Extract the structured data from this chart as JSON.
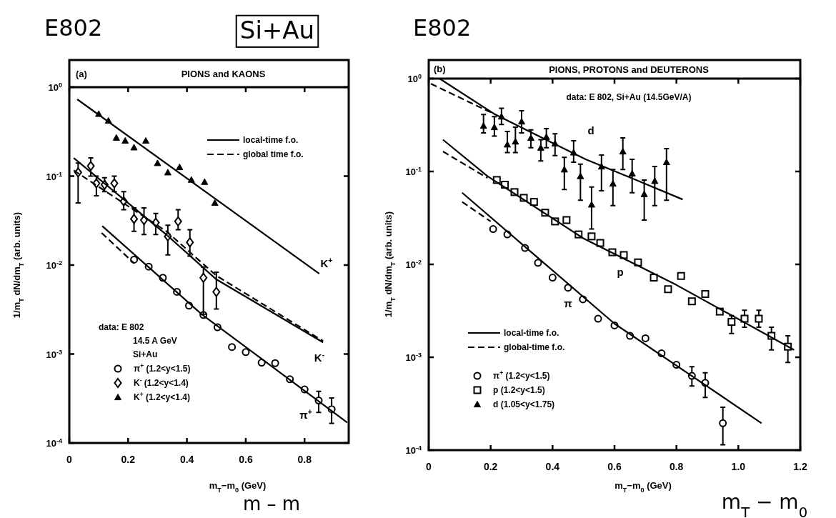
{
  "chart_data": [
    {
      "type": "scatter",
      "title": "E802",
      "subtitle": "PIONS and KAONS",
      "xlabel": "m$_{T}$−m$_{0}$ (GeV)",
      "ylabel": "1/m$_{T}$ dN/dm$_{T}$ (arb. units)",
      "log": "y",
      "legend": "bottom left",
      "xlim": [
        0,
        0.95
      ],
      "xticks": [
        0,
        {
          "value": 0.2,
          "label": "0.2"
        },
        {
          "value": 0.4,
          "label": "0.4"
        },
        {
          "value": 0.6,
          "label": "0.6"
        },
        {
          "value": 0.8,
          "label": "0.8"
        }
      ],
      "ylim": [
        0.0001,
        1
      ],
      "yticks": [
        {
          "value": 1,
          "label": "10$^{0}$"
        },
        {
          "value": 0.1,
          "label": "10$^{-1}$"
        },
        {
          "value": 0.01,
          "label": "10$^{-2}$"
        },
        {
          "value": 0.001,
          "label": "10$^{-3}$"
        },
        {
          "value": 0.0001,
          "label": "10$^{-4}$"
        }
      ],
      "annotations": [
        "(a)",
        "data: E 802",
        "14.5 A GeV",
        "Si+Au",
        "Si+Au",
        "m – m",
        "K$^{+}$",
        "K$^{-}$",
        "π$^{+}$"
      ],
      "series": [
        {
          "name": "π$^{+}$ (1.2<y<1.5)",
          "marker": "circle",
          "color": "#000000",
          "x": [
            0.22,
            0.27,
            0.318,
            0.366,
            0.407,
            0.456,
            0.504,
            0.553,
            0.6,
            0.654,
            0.7,
            0.75,
            0.8,
            0.848,
            0.892
          ],
          "values": [
            0.0115,
            0.0096,
            0.0072,
            0.005,
            0.0035,
            0.00275,
            0.002,
            0.0012,
            0.00105,
            0.0008,
            0.00079,
            0.00052,
            0.0004,
            0.0003,
            0.00024
          ],
          "errors": [
            null,
            null,
            null,
            null,
            null,
            null,
            null,
            null,
            null,
            null,
            null,
            null,
            null,
            [
              0.00022,
              0.00038
            ],
            [
              0.000166,
              0.00032
            ]
          ]
        },
        {
          "name": "K$^{-}$ (1.2<y<1.4)",
          "marker": "diamond",
          "color": "#000000",
          "x": [
            0.03,
            0.073,
            0.092,
            0.12,
            0.153,
            0.185,
            0.22,
            0.254,
            0.294,
            0.335,
            0.37,
            0.41,
            0.456,
            0.5
          ],
          "values": [
            0.11,
            0.13,
            0.083,
            0.08,
            0.083,
            0.052,
            0.033,
            0.032,
            0.03,
            0.021,
            0.031,
            0.018,
            0.0072,
            0.005
          ],
          "errors": [
            [
              0.05,
              0.14
            ],
            [
              0.1,
              0.16
            ],
            [
              0.06,
              0.1
            ],
            [
              0.067,
              0.096
            ],
            [
              0.067,
              0.1
            ],
            [
              0.042,
              0.067
            ],
            [
              0.024,
              0.044
            ],
            [
              0.022,
              0.044
            ],
            [
              0.022,
              0.038
            ],
            [
              0.013,
              0.028
            ],
            [
              0.025,
              0.042
            ],
            [
              0.0126,
              0.025
            ],
            [
              0.0028,
              0.0095
            ],
            [
              0.0032,
              0.0083
            ]
          ]
        },
        {
          "name": "K$^{+}$ (1.2<y<1.4)",
          "marker": "triangle",
          "color": "#000000",
          "x": [
            0.1,
            0.133,
            0.16,
            0.19,
            0.22,
            0.26,
            0.3,
            0.335,
            0.375,
            0.415,
            0.46,
            0.495
          ],
          "values": [
            0.5,
            0.42,
            0.27,
            0.25,
            0.21,
            0.25,
            0.14,
            0.11,
            0.126,
            0.091,
            0.086,
            0.05
          ]
        },
        {
          "name": "local-time f.o.",
          "type": "line",
          "line_style": "solid",
          "color": "#000000",
          "x": [
            0.027,
            0.85
          ],
          "values": [
            0.73,
            0.008
          ]
        },
        {
          "type": "line",
          "line_style": "solid",
          "color": "#000000",
          "x": [
            0.015,
            0.33,
            0.5,
            0.863
          ],
          "values": [
            0.16,
            0.022,
            0.0069,
            0.00135
          ]
        },
        {
          "name": "global time f.o.",
          "type": "line",
          "line_style": "dashed",
          "color": "#000000",
          "x": [
            0.015,
            0.33,
            0.5,
            0.863
          ],
          "values": [
            0.116,
            0.024,
            0.0076,
            0.0014
          ]
        },
        {
          "type": "line",
          "line_style": "solid",
          "color": "#000000",
          "x": [
            0.112,
            0.45,
            0.945
          ],
          "values": [
            0.0275,
            0.0028,
            0.00017
          ]
        },
        {
          "type": "line",
          "line_style": "dashed",
          "color": "#000000",
          "x": [
            0.11,
            0.22
          ],
          "values": [
            0.023,
            0.0105
          ]
        }
      ]
    },
    {
      "type": "scatter",
      "title": "E802",
      "subtitle": "PIONS, PROTONS and DEUTERONS",
      "xlabel": "m$_{T}$−m$_{0}$ (GeV)",
      "ylabel": "1/m$_{T}$ dN/dm$_{T}$ (arb. units)",
      "log": "y",
      "legend": "bottom left",
      "xlim": [
        0,
        1.2
      ],
      "xticks": [
        0,
        {
          "value": 0.2,
          "label": "0.2"
        },
        {
          "value": 0.4,
          "label": "0.4"
        },
        {
          "value": 0.6,
          "label": "0.6"
        },
        {
          "value": 0.8,
          "label": "0.8"
        },
        {
          "value": 1,
          "label": "1.0"
        },
        {
          "value": 1.2,
          "label": "1.2"
        }
      ],
      "ylim": [
        0.0001,
        1
      ],
      "yticks": [
        {
          "value": 1,
          "label": "10$^{0}$"
        },
        {
          "value": 0.1,
          "label": "10$^{-1}$"
        },
        {
          "value": 0.01,
          "label": "10$^{-2}$"
        },
        {
          "value": 0.001,
          "label": "10$^{-3}$"
        },
        {
          "value": 0.0001,
          "label": "10$^{-4}$"
        }
      ],
      "annotations": [
        "(b)",
        "data: E 802, Si+Au (14.5GeV/A)",
        "m$_{T}$ − m$_{0}$",
        "d",
        "p",
        "π"
      ],
      "series": [
        {
          "name": "π$^{+}$ (1.2<y<1.5)",
          "marker": "circle",
          "color": "#000000",
          "x": [
            0.208,
            0.254,
            0.311,
            0.353,
            0.4,
            0.45,
            0.498,
            0.547,
            0.6,
            0.65,
            0.7,
            0.752,
            0.8,
            0.85,
            0.893,
            0.95
          ],
          "values": [
            0.024,
            0.021,
            0.015,
            0.0104,
            0.0072,
            0.0056,
            0.0042,
            0.0026,
            0.0022,
            0.0017,
            0.0016,
            0.0011,
            0.00083,
            0.00063,
            0.00053,
            0.000195
          ],
          "errors": [
            null,
            null,
            null,
            null,
            null,
            null,
            null,
            null,
            null,
            null,
            null,
            null,
            null,
            [
              0.00049,
              0.00079
            ],
            [
              0.00037,
              0.00068
            ],
            [
              0.000114,
              0.00029
            ]
          ]
        },
        {
          "name": "p (1.2<y<1.5)",
          "marker": "square",
          "color": "#000000",
          "x": [
            0.22,
            0.246,
            0.277,
            0.307,
            0.34,
            0.376,
            0.408,
            0.445,
            0.484,
            0.526,
            0.554,
            0.593,
            0.63,
            0.676,
            0.727,
            0.773,
            0.815,
            0.85,
            0.893,
            0.94,
            0.978,
            1.02,
            1.066,
            1.107,
            1.16
          ],
          "values": [
            0.081,
            0.072,
            0.06,
            0.052,
            0.047,
            0.036,
            0.029,
            0.03,
            0.021,
            0.02,
            0.017,
            0.0135,
            0.0126,
            0.0105,
            0.0072,
            0.0054,
            0.0075,
            0.004,
            0.0048,
            0.0031,
            0.0024,
            0.0026,
            0.0026,
            0.0017,
            0.0013
          ],
          "errors": [
            null,
            null,
            null,
            null,
            null,
            null,
            null,
            null,
            null,
            null,
            null,
            null,
            null,
            null,
            null,
            null,
            null,
            null,
            null,
            null,
            [
              0.0018,
              0.0028
            ],
            [
              0.0021,
              0.0032
            ],
            [
              0.0021,
              0.0032
            ],
            [
              0.0012,
              0.0021
            ],
            [
              0.00088,
              0.0017
            ]
          ]
        },
        {
          "name": "d (1.05<y<1.75)",
          "marker": "triangle",
          "color": "#000000",
          "x": [
            0.177,
            0.212,
            0.235,
            0.254,
            0.28,
            0.3,
            0.33,
            0.362,
            0.38,
            0.408,
            0.438,
            0.468,
            0.49,
            0.526,
            0.558,
            0.595,
            0.627,
            0.657,
            0.696,
            0.73,
            0.768
          ],
          "values": [
            0.31,
            0.3,
            0.39,
            0.195,
            0.21,
            0.345,
            0.23,
            0.18,
            0.235,
            0.2,
            0.105,
            0.16,
            0.089,
            0.044,
            0.113,
            0.074,
            0.164,
            0.095,
            0.057,
            0.079,
            0.126
          ],
          "errors": [
            [
              0.26,
              0.41
            ],
            [
              0.24,
              0.39
            ],
            [
              0.32,
              0.48
            ],
            [
              0.16,
              0.27
            ],
            [
              0.16,
              0.3
            ],
            [
              0.26,
              0.45
            ],
            [
              0.18,
              0.28
            ],
            [
              0.13,
              0.22
            ],
            [
              0.18,
              0.29
            ],
            [
              0.148,
              0.255
            ],
            [
              0.064,
              0.142
            ],
            [
              0.126,
              0.214
            ],
            [
              0.049,
              0.12
            ],
            [
              0.024,
              0.068
            ],
            [
              0.062,
              0.15
            ],
            [
              0.043,
              0.105
            ],
            [
              0.105,
              0.23
            ],
            [
              0.059,
              0.135
            ],
            [
              0.03,
              0.081
            ],
            [
              0.043,
              0.113
            ],
            [
              0.049,
              0.176
            ]
          ]
        },
        {
          "name": "local-time f.o.",
          "type": "line",
          "line_style": "solid",
          "color": "#000000",
          "x": [
            0.035,
            0.215,
            0.507,
            0.662,
            0.82
          ],
          "values": [
            1.0,
            0.41,
            0.135,
            0.083,
            0.05
          ]
        },
        {
          "name": "global-time f.o.",
          "type": "line",
          "line_style": "dashed",
          "color": "#000000",
          "x": [
            0.007,
            0.215
          ],
          "values": [
            0.88,
            0.41
          ]
        },
        {
          "type": "line",
          "line_style": "solid",
          "color": "#000000",
          "x": [
            0.046,
            0.19,
            0.5,
            0.8,
            1.18
          ],
          "values": [
            0.22,
            0.089,
            0.019,
            0.006,
            0.0012
          ]
        },
        {
          "type": "line",
          "line_style": "dashed",
          "color": "#000000",
          "x": [
            0.046,
            0.19
          ],
          "values": [
            0.164,
            0.085
          ]
        },
        {
          "type": "line",
          "line_style": "solid",
          "color": "#000000",
          "x": [
            0.108,
            0.6,
            1.075
          ],
          "values": [
            0.059,
            0.0023,
            0.000195
          ]
        },
        {
          "type": "line",
          "line_style": "dashed",
          "color": "#000000",
          "x": [
            0.108,
            0.2
          ],
          "values": [
            0.047,
            0.029
          ]
        }
      ]
    }
  ]
}
